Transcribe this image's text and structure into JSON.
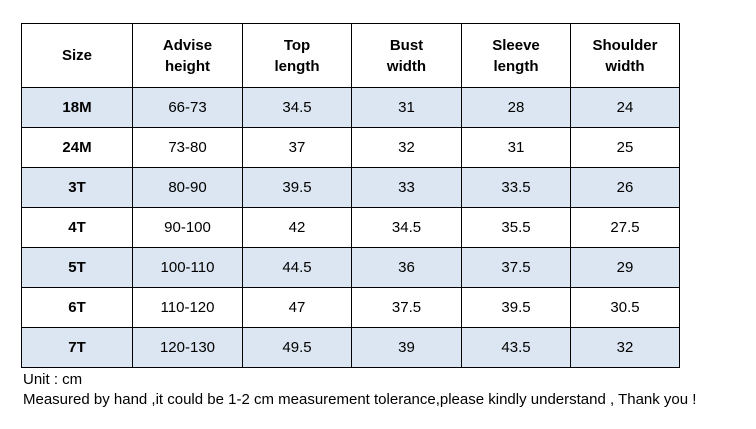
{
  "colors": {
    "shaded_row": "#dce6f2",
    "plain_row": "#ffffff",
    "border": "#000000",
    "text": "#000000"
  },
  "table": {
    "headers": [
      "Size",
      "Advise\nheight",
      "Top\nlength",
      "Bust\nwidth",
      "Sleeve\nlength",
      "Shoulder\nwidth"
    ],
    "rows": [
      {
        "shaded": true,
        "cells": [
          "18M",
          "66-73",
          "34.5",
          "31",
          "28",
          "24"
        ]
      },
      {
        "shaded": false,
        "cells": [
          "24M",
          "73-80",
          "37",
          "32",
          "31",
          "25"
        ]
      },
      {
        "shaded": true,
        "cells": [
          "3T",
          "80-90",
          "39.5",
          "33",
          "33.5",
          "26"
        ]
      },
      {
        "shaded": false,
        "cells": [
          "4T",
          "90-100",
          "42",
          "34.5",
          "35.5",
          "27.5"
        ]
      },
      {
        "shaded": true,
        "cells": [
          "5T",
          "100-110",
          "44.5",
          "36",
          "37.5",
          "29"
        ]
      },
      {
        "shaded": false,
        "cells": [
          "6T",
          "110-120",
          "47",
          "37.5",
          "39.5",
          "30.5"
        ]
      },
      {
        "shaded": true,
        "cells": [
          "7T",
          "120-130",
          "49.5",
          "39",
          "43.5",
          "32"
        ]
      }
    ]
  },
  "notes": {
    "unit": "Unit : cm",
    "disclaimer": "Measured by hand ,it could be 1-2 cm measurement tolerance,please kindly understand , Thank you !"
  }
}
